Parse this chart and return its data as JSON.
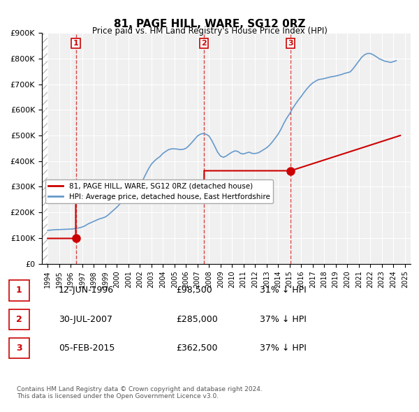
{
  "title": "81, PAGE HILL, WARE, SG12 0RZ",
  "subtitle": "Price paid vs. HM Land Registry's House Price Index (HPI)",
  "xlabel": "",
  "ylabel": "",
  "ylim": [
    0,
    900000
  ],
  "ytick_labels": [
    "£0",
    "£100K",
    "£200K",
    "£300K",
    "£400K",
    "£500K",
    "£600K",
    "£700K",
    "£800K",
    "£900K"
  ],
  "ytick_values": [
    0,
    100000,
    200000,
    300000,
    400000,
    500000,
    600000,
    700000,
    800000,
    900000
  ],
  "background_color": "#ffffff",
  "plot_bg_color": "#f0f0f0",
  "hatch_color": "#d0d0d0",
  "grid_color": "#ffffff",
  "sale_color": "#cc0000",
  "hpi_color": "#6699cc",
  "sale_dates": [
    1996.44,
    2007.58,
    2015.09
  ],
  "sale_prices": [
    98500,
    285000,
    362500
  ],
  "sale_labels": [
    "1",
    "2",
    "3"
  ],
  "legend_sale_label": "81, PAGE HILL, WARE, SG12 0RZ (detached house)",
  "legend_hpi_label": "HPI: Average price, detached house, East Hertfordshire",
  "table_rows": [
    [
      "1",
      "12-JUN-1996",
      "£98,500",
      "31% ↓ HPI"
    ],
    [
      "2",
      "30-JUL-2007",
      "£285,000",
      "37% ↓ HPI"
    ],
    [
      "3",
      "05-FEB-2015",
      "£362,500",
      "37% ↓ HPI"
    ]
  ],
  "footer": "Contains HM Land Registry data © Crown copyright and database right 2024.\nThis data is licensed under the Open Government Licence v3.0.",
  "hpi_data": {
    "years": [
      1994.0,
      1994.25,
      1994.5,
      1994.75,
      1995.0,
      1995.25,
      1995.5,
      1995.75,
      1996.0,
      1996.25,
      1996.5,
      1996.75,
      1997.0,
      1997.25,
      1997.5,
      1997.75,
      1998.0,
      1998.25,
      1998.5,
      1998.75,
      1999.0,
      1999.25,
      1999.5,
      1999.75,
      2000.0,
      2000.25,
      2000.5,
      2000.75,
      2001.0,
      2001.25,
      2001.5,
      2001.75,
      2002.0,
      2002.25,
      2002.5,
      2002.75,
      2003.0,
      2003.25,
      2003.5,
      2003.75,
      2004.0,
      2004.25,
      2004.5,
      2004.75,
      2005.0,
      2005.25,
      2005.5,
      2005.75,
      2006.0,
      2006.25,
      2006.5,
      2006.75,
      2007.0,
      2007.25,
      2007.5,
      2007.75,
      2008.0,
      2008.25,
      2008.5,
      2008.75,
      2009.0,
      2009.25,
      2009.5,
      2009.75,
      2010.0,
      2010.25,
      2010.5,
      2010.75,
      2011.0,
      2011.25,
      2011.5,
      2011.75,
      2012.0,
      2012.25,
      2012.5,
      2012.75,
      2013.0,
      2013.25,
      2013.5,
      2013.75,
      2014.0,
      2014.25,
      2014.5,
      2014.75,
      2015.0,
      2015.25,
      2015.5,
      2015.75,
      2016.0,
      2016.25,
      2016.5,
      2016.75,
      2017.0,
      2017.25,
      2017.5,
      2017.75,
      2018.0,
      2018.25,
      2018.5,
      2018.75,
      2019.0,
      2019.25,
      2019.5,
      2019.75,
      2020.0,
      2020.25,
      2020.5,
      2020.75,
      2021.0,
      2021.25,
      2021.5,
      2021.75,
      2022.0,
      2022.25,
      2022.5,
      2022.75,
      2023.0,
      2023.25,
      2023.5,
      2023.75,
      2024.0,
      2024.25
    ],
    "values": [
      130000,
      131000,
      132000,
      133000,
      133000,
      133500,
      134000,
      134500,
      135000,
      136000,
      138000,
      140000,
      143000,
      148000,
      155000,
      160000,
      165000,
      170000,
      175000,
      178000,
      182000,
      190000,
      200000,
      210000,
      220000,
      232000,
      245000,
      255000,
      260000,
      268000,
      278000,
      290000,
      305000,
      325000,
      348000,
      370000,
      388000,
      400000,
      410000,
      418000,
      430000,
      438000,
      445000,
      448000,
      448000,
      447000,
      445000,
      446000,
      450000,
      460000,
      472000,
      485000,
      498000,
      505000,
      508000,
      505000,
      498000,
      480000,
      458000,
      435000,
      420000,
      415000,
      420000,
      428000,
      435000,
      440000,
      438000,
      430000,
      428000,
      432000,
      435000,
      430000,
      430000,
      432000,
      438000,
      445000,
      452000,
      462000,
      475000,
      490000,
      505000,
      525000,
      548000,
      568000,
      585000,
      605000,
      622000,
      638000,
      652000,
      668000,
      682000,
      695000,
      705000,
      712000,
      718000,
      720000,
      722000,
      725000,
      728000,
      730000,
      732000,
      735000,
      738000,
      742000,
      745000,
      748000,
      760000,
      775000,
      790000,
      805000,
      815000,
      820000,
      820000,
      815000,
      808000,
      800000,
      795000,
      790000,
      788000,
      785000,
      788000,
      792000
    ]
  },
  "sale_line_data": {
    "x": [
      1994.0,
      1996.44,
      2007.58,
      2015.09,
      2024.5
    ],
    "y": [
      98500,
      98500,
      285000,
      362500,
      500000
    ]
  }
}
